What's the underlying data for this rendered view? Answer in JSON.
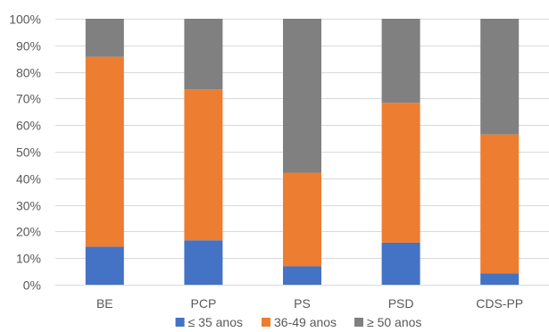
{
  "chart_data": {
    "type": "bar",
    "stacked": true,
    "percent_stacked": true,
    "categories": [
      "BE",
      "PCP",
      "PS",
      "PSD",
      "CDS-PP"
    ],
    "series": [
      {
        "name": "≤ 35 anos",
        "color": "#4472C4",
        "values": [
          14.3,
          16.7,
          6.9,
          15.8,
          4.3
        ]
      },
      {
        "name": "36-49 anos",
        "color": "#ED7D31",
        "values": [
          71.4,
          56.7,
          35.2,
          52.6,
          52.2
        ]
      },
      {
        "name": "≥ 50 anos",
        "color": "#808080",
        "values": [
          14.3,
          26.6,
          57.9,
          31.6,
          43.5
        ]
      }
    ],
    "y_ticks": [
      "0%",
      "10%",
      "20%",
      "30%",
      "40%",
      "50%",
      "60%",
      "70%",
      "80%",
      "90%",
      "100%"
    ],
    "ylim": [
      0,
      100
    ],
    "grid": true,
    "legend_position": "bottom"
  }
}
